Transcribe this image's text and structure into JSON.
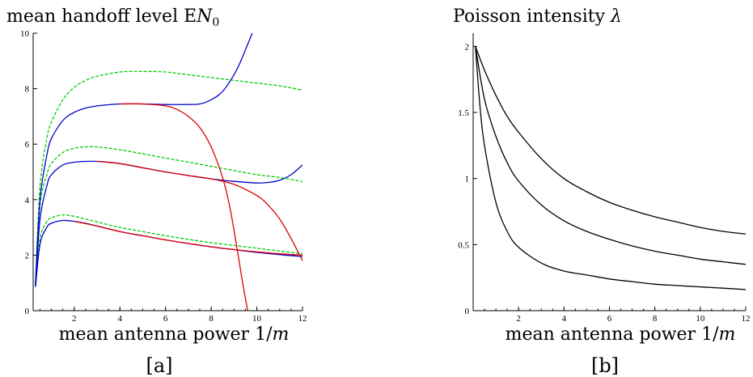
{
  "chart_data": [
    {
      "type": "line",
      "title": "mean handoff level EN_0",
      "title_text": "mean handoff level E",
      "title_var": "N",
      "title_sub": "0",
      "xlabel_text": "mean antenna power 1/",
      "xlabel_var": "m",
      "panel_label": "[a]",
      "xlim": [
        0.2,
        12
      ],
      "ylim": [
        0,
        10
      ],
      "xticks": [
        2,
        4,
        6,
        8,
        10,
        12
      ],
      "yticks": [
        0,
        2,
        4,
        6,
        8,
        10
      ],
      "colors": {
        "approx": "#00cc00",
        "exact": "#0000cc",
        "expansion": "#dd0000"
      },
      "series": [
        {
          "style": "approx",
          "dash": true,
          "x": [
            0.3,
            0.5,
            0.8,
            1.0,
            1.5,
            2,
            2.5,
            3,
            4,
            5,
            6,
            7,
            8,
            9,
            10,
            11,
            12
          ],
          "y": [
            1.0,
            4.5,
            6.2,
            6.8,
            7.6,
            8.05,
            8.3,
            8.45,
            8.6,
            8.62,
            8.6,
            8.5,
            8.4,
            8.3,
            8.2,
            8.1,
            7.95
          ]
        },
        {
          "style": "approx",
          "dash": true,
          "x": [
            0.3,
            0.5,
            0.8,
            1.0,
            1.5,
            2,
            2.5,
            3,
            4,
            5,
            6,
            7,
            8,
            9,
            10,
            11,
            12
          ],
          "y": [
            1.0,
            3.8,
            4.9,
            5.3,
            5.7,
            5.85,
            5.9,
            5.9,
            5.8,
            5.65,
            5.5,
            5.35,
            5.2,
            5.05,
            4.9,
            4.8,
            4.65
          ]
        },
        {
          "style": "approx",
          "dash": true,
          "x": [
            0.3,
            0.5,
            0.8,
            1.0,
            1.5,
            2,
            2.5,
            3,
            4,
            5,
            6,
            7,
            8,
            9,
            10,
            11,
            12
          ],
          "y": [
            0.9,
            2.6,
            3.2,
            3.35,
            3.45,
            3.4,
            3.3,
            3.2,
            3.0,
            2.85,
            2.7,
            2.57,
            2.45,
            2.35,
            2.25,
            2.15,
            2.05
          ]
        },
        {
          "style": "exact",
          "dash": false,
          "x": [
            0.3,
            0.5,
            0.8,
            1.0,
            1.5,
            2,
            2.5,
            3,
            3.5,
            4,
            5,
            6,
            7,
            7.5,
            8,
            8.5,
            9,
            9.3,
            9.6,
            9.8
          ],
          "y": [
            0.9,
            4.0,
            5.6,
            6.2,
            6.85,
            7.15,
            7.3,
            7.38,
            7.42,
            7.45,
            7.45,
            7.43,
            7.43,
            7.45,
            7.6,
            7.9,
            8.5,
            9.0,
            9.6,
            10.0
          ]
        },
        {
          "style": "exact",
          "dash": false,
          "x": [
            0.3,
            0.5,
            0.8,
            1.0,
            1.5,
            2,
            2.5,
            3,
            3.5,
            4,
            5,
            6,
            7,
            8,
            9,
            10,
            10.5,
            11,
            11.5,
            12
          ],
          "y": [
            0.9,
            3.3,
            4.5,
            4.9,
            5.25,
            5.35,
            5.38,
            5.38,
            5.35,
            5.3,
            5.15,
            5.0,
            4.87,
            4.75,
            4.66,
            4.6,
            4.62,
            4.7,
            4.9,
            5.25
          ]
        },
        {
          "style": "exact",
          "dash": false,
          "x": [
            0.3,
            0.5,
            0.8,
            1.0,
            1.5,
            2,
            2.5,
            3,
            4,
            5,
            6,
            7,
            8,
            9,
            10,
            11,
            12
          ],
          "y": [
            0.85,
            2.4,
            3.0,
            3.15,
            3.25,
            3.22,
            3.15,
            3.05,
            2.85,
            2.7,
            2.55,
            2.42,
            2.3,
            2.2,
            2.1,
            2.02,
            1.95
          ]
        },
        {
          "style": "expansion",
          "dash": false,
          "x": [
            4,
            5,
            6,
            6.5,
            7,
            7.5,
            8,
            8.5,
            8.8,
            9.0,
            9.2,
            9.4,
            9.6
          ],
          "y": [
            7.45,
            7.45,
            7.38,
            7.25,
            7.0,
            6.6,
            5.9,
            4.8,
            3.8,
            2.9,
            1.9,
            0.9,
            0.0
          ]
        },
        {
          "style": "expansion",
          "dash": false,
          "x": [
            3,
            4,
            5,
            6,
            7,
            8,
            9,
            10,
            10.5,
            11,
            11.5,
            12
          ],
          "y": [
            5.38,
            5.3,
            5.15,
            5.0,
            4.87,
            4.75,
            4.55,
            4.15,
            3.8,
            3.3,
            2.6,
            1.8
          ]
        },
        {
          "style": "expansion",
          "dash": false,
          "x": [
            2,
            3,
            4,
            5,
            6,
            7,
            8,
            9,
            10,
            11,
            12
          ],
          "y": [
            3.22,
            3.05,
            2.85,
            2.7,
            2.55,
            2.42,
            2.3,
            2.2,
            2.12,
            2.05,
            2.0
          ]
        }
      ]
    },
    {
      "type": "line",
      "title": "Poisson intensity λ",
      "title_text": "Poisson intensity ",
      "title_var": "λ",
      "xlabel_text": "mean antenna power 1/",
      "xlabel_var": "m",
      "panel_label": "[b]",
      "xlim": [
        0,
        12
      ],
      "ylim": [
        0,
        2.1
      ],
      "xticks": [
        2,
        4,
        6,
        8,
        10,
        12
      ],
      "yticks": [
        0,
        0.5,
        1,
        1.5,
        2
      ],
      "ytick_labels": [
        "0",
        "0.5",
        "1",
        "1.5",
        "2"
      ],
      "colors": {
        "line": "#000000"
      },
      "series": [
        {
          "x": [
            0.1,
            0.5,
            1,
            1.5,
            2,
            3,
            4,
            5,
            6,
            7,
            8,
            9,
            10,
            11,
            12
          ],
          "y": [
            2.0,
            1.82,
            1.63,
            1.47,
            1.35,
            1.15,
            1.0,
            0.9,
            0.82,
            0.76,
            0.71,
            0.67,
            0.63,
            0.6,
            0.58
          ]
        },
        {
          "x": [
            0.1,
            0.5,
            1,
            1.5,
            2,
            3,
            4,
            5,
            6,
            7,
            8,
            9,
            10,
            11,
            12
          ],
          "y": [
            2.0,
            1.6,
            1.32,
            1.12,
            0.98,
            0.8,
            0.68,
            0.6,
            0.54,
            0.49,
            0.45,
            0.42,
            0.39,
            0.37,
            0.35
          ]
        },
        {
          "x": [
            0.1,
            0.3,
            0.5,
            1,
            1.5,
            2,
            3,
            4,
            5,
            6,
            7,
            8,
            9,
            10,
            11,
            12
          ],
          "y": [
            2.0,
            1.55,
            1.25,
            0.82,
            0.6,
            0.48,
            0.36,
            0.3,
            0.27,
            0.24,
            0.22,
            0.2,
            0.19,
            0.18,
            0.17,
            0.16
          ]
        }
      ]
    }
  ]
}
